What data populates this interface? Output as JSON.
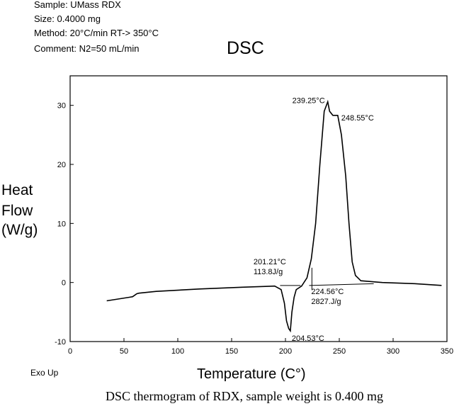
{
  "header": {
    "sample": "Sample: UMass RDX",
    "size": "Size: 0.4000 mg",
    "method": "Method: 20°C/min RT-> 350°C",
    "comment": "Comment: N2=50 mL/min"
  },
  "caption": "DSC thermogram of RDX, sample weight is 0.400 mg",
  "chart_data": {
    "type": "line",
    "title": "DSC",
    "xlabel": "Temperature (C°)",
    "ylabel": [
      "Heat",
      "Flow",
      "(W/g)"
    ],
    "corner_label": "Exo Up",
    "xlim": [
      0,
      350
    ],
    "ylim": [
      -10,
      35
    ],
    "x_ticks": [
      0,
      50,
      100,
      150,
      200,
      250,
      300,
      350
    ],
    "y_ticks": [
      -10,
      0,
      10,
      20,
      30
    ],
    "grid": false,
    "series": [
      {
        "x": [
          34,
          55,
          58,
          62,
          64,
          80,
          120,
          160,
          190,
          196,
          199,
          201,
          203,
          204.53,
          206,
          208,
          210,
          215,
          220,
          224,
          228,
          232,
          236,
          239.25,
          241,
          244,
          248.55,
          252,
          256,
          259,
          262,
          265,
          270,
          290,
          320,
          345
        ],
        "y": [
          -3.1,
          -2.5,
          -2.4,
          -1.9,
          -1.8,
          -1.5,
          -1.1,
          -0.8,
          -0.6,
          -1.2,
          -3.5,
          -6.5,
          -7.8,
          -8.2,
          -5,
          -2.5,
          -1.2,
          -0.6,
          0.8,
          4,
          10,
          20,
          29,
          30.6,
          29,
          28.3,
          28.3,
          25,
          18,
          10,
          3.5,
          1.2,
          0.3,
          0,
          -0.2,
          -0.5
        ]
      }
    ],
    "annotations": [
      {
        "id": "peak1",
        "lines": [
          "239.25°C"
        ],
        "x": 239.25,
        "y": 30.6
      },
      {
        "id": "peak2",
        "lines": [
          "248.55°C"
        ],
        "x": 248.55,
        "y": 28.3
      },
      {
        "id": "melt",
        "lines": [
          "201.21°C",
          "113.8J/g"
        ],
        "x": 201.21,
        "y": -0.4
      },
      {
        "id": "onset",
        "lines": [
          "224.56°C",
          "2827.J/g"
        ],
        "x": 224.56,
        "y": -0.5
      },
      {
        "id": "min",
        "lines": [
          "204.53°C"
        ],
        "x": 204.53,
        "y": -8.2
      }
    ]
  }
}
